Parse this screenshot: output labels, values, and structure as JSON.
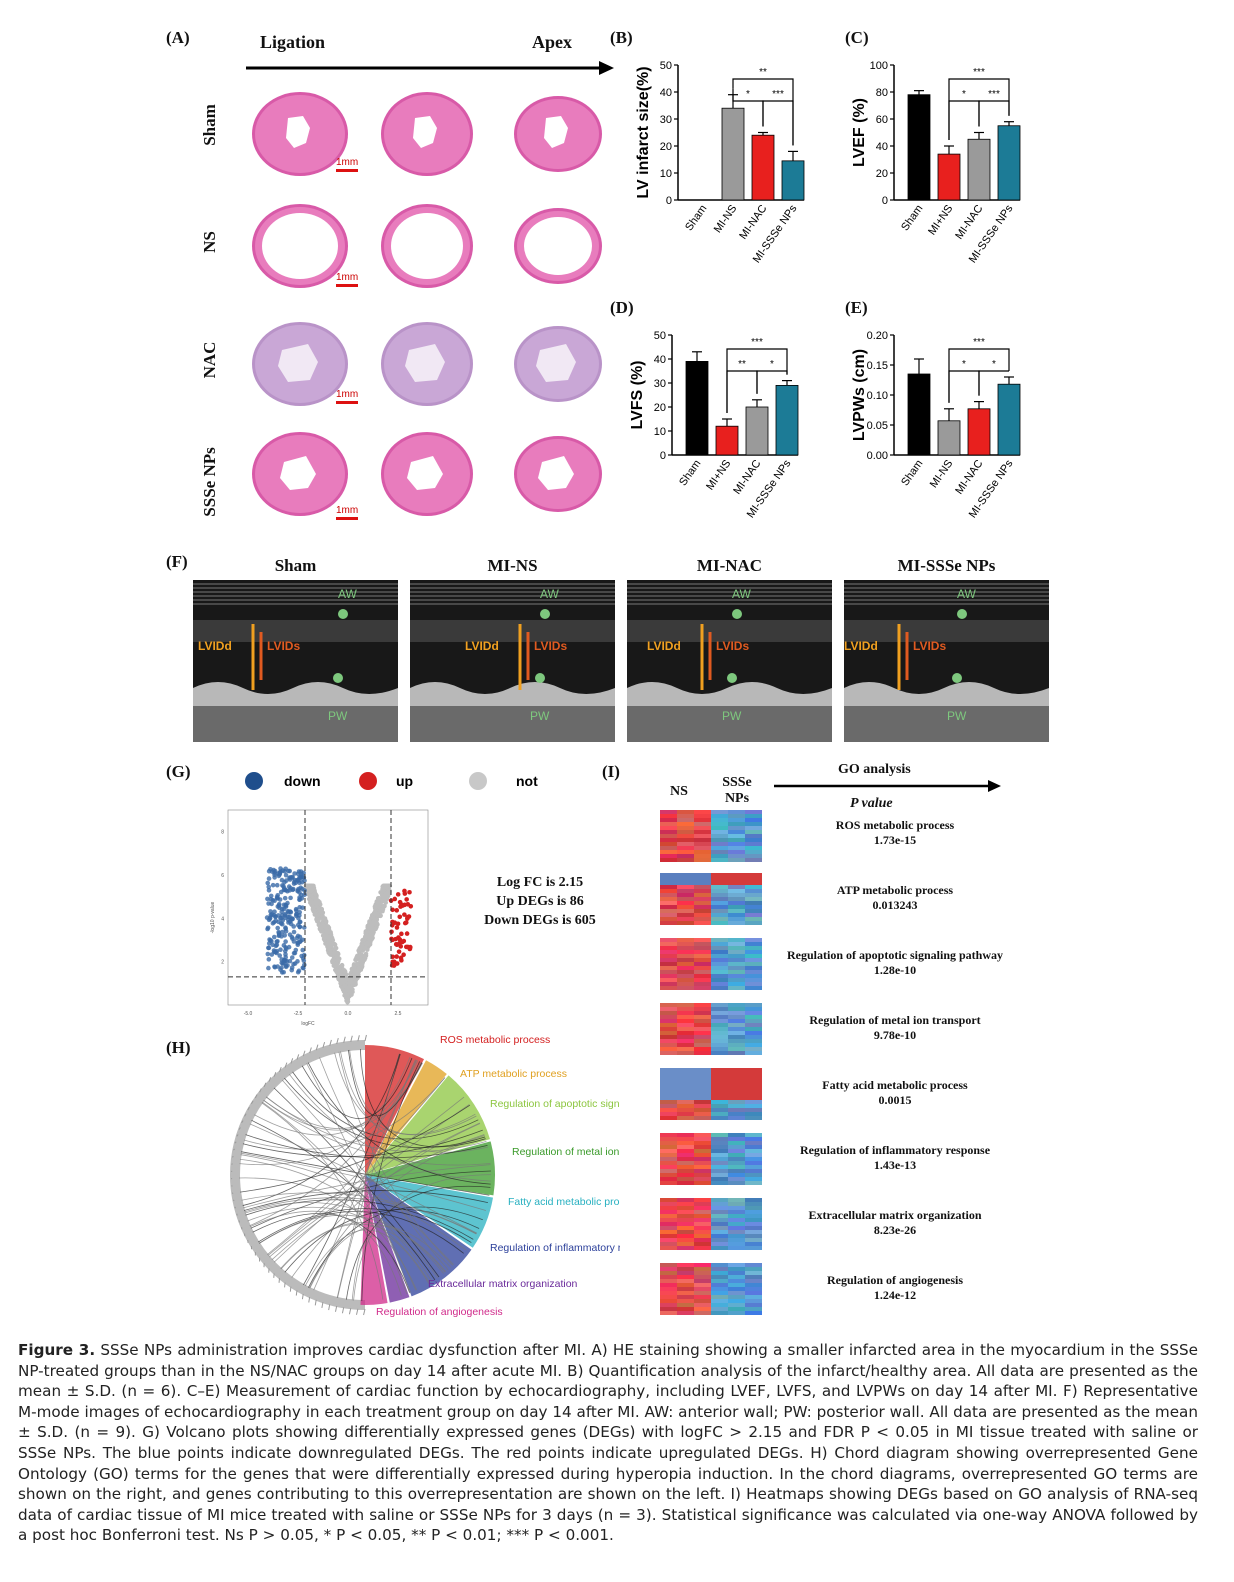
{
  "panel_A": {
    "label": "(A)",
    "ligation": "Ligation",
    "apex": "Apex",
    "rows": [
      "Sham",
      "NS",
      "NAC",
      "SSSe NPs"
    ],
    "scale_bar": "1mm"
  },
  "panel_B": {
    "label": "(B)"
  },
  "panel_C": {
    "label": "(C)"
  },
  "panel_D": {
    "label": "(D)"
  },
  "panel_E": {
    "label": "(E)"
  },
  "chart_data": [
    {
      "type": "bar",
      "panel": "B",
      "ylabel": "LV infarct size(%)",
      "categories": [
        "Sham",
        "MI-NS",
        "MI-NAC",
        "MI-SSSe NPs"
      ],
      "values": [
        0,
        34,
        24,
        14.5
      ],
      "errors": [
        0,
        5,
        1,
        3.5
      ],
      "colors": [
        "#000000",
        "#9a9a9a",
        "#e8201e",
        "#1c7b96"
      ],
      "ylim": [
        0,
        50
      ],
      "yticks": [
        "0",
        "10",
        "20",
        "30",
        "40",
        "50"
      ],
      "significance": [
        {
          "pair": [
            1,
            2
          ],
          "label": "*"
        },
        {
          "pair": [
            2,
            3
          ],
          "label": "***"
        },
        {
          "pair": [
            1,
            3
          ],
          "label": "**"
        }
      ]
    },
    {
      "type": "bar",
      "panel": "C",
      "ylabel": "LVEF (%)",
      "categories": [
        "Sham",
        "MI+NS",
        "MI-NAC",
        "MI-SSSe NPs"
      ],
      "values": [
        78,
        34,
        45,
        55
      ],
      "errors": [
        3,
        6,
        5,
        3
      ],
      "colors": [
        "#000000",
        "#e8201e",
        "#9a9a9a",
        "#1c7b96"
      ],
      "ylim": [
        0,
        100
      ],
      "yticks": [
        "0",
        "20",
        "40",
        "60",
        "80",
        "100"
      ],
      "significance": [
        {
          "pair": [
            1,
            2
          ],
          "label": "*"
        },
        {
          "pair": [
            2,
            3
          ],
          "label": "***"
        },
        {
          "pair": [
            1,
            3
          ],
          "label": "***"
        }
      ]
    },
    {
      "type": "bar",
      "panel": "D",
      "ylabel": "LVFS (%)",
      "categories": [
        "Sham",
        "MI+NS",
        "MI-NAC",
        "MI-SSSe NPs"
      ],
      "values": [
        39,
        12,
        20,
        29
      ],
      "errors": [
        4,
        3,
        3,
        2
      ],
      "colors": [
        "#000000",
        "#e8201e",
        "#9a9a9a",
        "#1c7b96"
      ],
      "ylim": [
        0,
        50
      ],
      "yticks": [
        "0",
        "10",
        "20",
        "30",
        "40",
        "50"
      ],
      "significance": [
        {
          "pair": [
            1,
            2
          ],
          "label": "**"
        },
        {
          "pair": [
            2,
            3
          ],
          "label": "*"
        },
        {
          "pair": [
            1,
            3
          ],
          "label": "***"
        }
      ]
    },
    {
      "type": "bar",
      "panel": "E",
      "ylabel": "LVPWs (cm)",
      "categories": [
        "Sham",
        "MI-NS",
        "MI-NAC",
        "MI-SSSe NPs"
      ],
      "values": [
        0.135,
        0.057,
        0.077,
        0.118
      ],
      "errors": [
        0.025,
        0.02,
        0.012,
        0.012
      ],
      "colors": [
        "#000000",
        "#9a9a9a",
        "#e8201e",
        "#1c7b96"
      ],
      "ylim": [
        0,
        0.2
      ],
      "yticks": [
        "0.00",
        "0.05",
        "0.10",
        "0.15",
        "0.20"
      ],
      "significance": [
        {
          "pair": [
            1,
            2
          ],
          "label": "*"
        },
        {
          "pair": [
            2,
            3
          ],
          "label": "*"
        },
        {
          "pair": [
            1,
            3
          ],
          "label": "***"
        }
      ]
    },
    {
      "type": "scatter",
      "panel": "G",
      "xlabel": "logFC",
      "ylabel": "-log10 p-value",
      "xticks": [
        "-5.0",
        "-2.5",
        "0.0",
        "2.5"
      ],
      "yticks": [
        "2",
        "4",
        "6",
        "8"
      ],
      "legend": [
        "down",
        "up",
        "not"
      ],
      "legend_colors": [
        "#1f4e8c",
        "#d42020",
        "#bfbfbf"
      ],
      "annotation": [
        "Log FC is 2.15",
        "Up DEGs is 86",
        "Down DEGs is 605"
      ]
    }
  ],
  "panel_F": {
    "label": "(F)",
    "groups": [
      "Sham",
      "MI-NS",
      "MI-NAC",
      "MI-SSSe NPs"
    ],
    "aw": "AW",
    "pw": "PW",
    "lvidd": "LVIDd",
    "lvids": "LVIDs"
  },
  "panel_G": {
    "label": "(G)"
  },
  "panel_H": {
    "label": "(H)",
    "terms": [
      "ROS metabolic process",
      "ATP metabolic process",
      "Regulation of apoptotic signaling pathway",
      "Regulation of metal ion transport",
      "Fatty acid metabolic process",
      "Regulation of inflammatory response",
      "Extracellular matrix organization",
      "Regulation of angiogenesis"
    ],
    "term_colors": [
      "#d42020",
      "#e0a020",
      "#8cc63f",
      "#3a9a2a",
      "#27b0c0",
      "#2b3f9a",
      "#6a2a9a",
      "#d02a8a"
    ]
  },
  "panel_I": {
    "label": "(I)",
    "col_ns": "NS",
    "col_ssse": "SSSe NPs",
    "go_analysis": "GO analysis",
    "p_value": "P value",
    "terms": [
      {
        "name": "ROS metabolic process",
        "p": "1.73e-15"
      },
      {
        "name": "ATP metabolic process",
        "p": "0.013243"
      },
      {
        "name": "Regulation of apoptotic signaling pathway",
        "p": "1.28e-10"
      },
      {
        "name": "Regulation of metal ion transport",
        "p": "9.78e-10"
      },
      {
        "name": "Fatty acid metabolic process",
        "p": "0.0015"
      },
      {
        "name": "Regulation of inflammatory response",
        "p": "1.43e-13"
      },
      {
        "name": "Extracellular matrix organization",
        "p": "8.23e-26"
      },
      {
        "name": "Regulation of angiogenesis",
        "p": "1.24e-12"
      }
    ]
  },
  "caption": {
    "lead": "Figure 3.",
    "text": "SSSe NPs administration improves cardiac dysfunction after MI. A) HE staining showing a smaller infarcted area in the myocardium in the SSSe NP-treated groups than in the NS/NAC groups on day 14 after acute MI. B) Quantification analysis of the infarct/healthy area. All data are presented as the mean ± S.D. (n = 6). C–E) Measurement of cardiac function by echocardiography, including LVEF, LVFS, and LVPWs on day 14 after MI. F) Representative M-mode images of echocardiography in each treatment group on day 14 after MI. AW: anterior wall; PW: posterior wall. All data are presented as the mean ± S.D. (n = 9). G) Volcano plots showing differentially expressed genes (DEGs) with logFC > 2.15 and FDR P < 0.05 in MI tissue treated with saline or SSSe NPs. The blue points indicate downregulated DEGs. The red points indicate upregulated DEGs. H) Chord diagram showing overrepresented Gene Ontology (GO) terms for the genes that were differentially expressed during hyperopia induction. In the chord diagrams, overrepresented GO terms are shown on the right, and genes contributing to this overrepresentation are shown on the left. I) Heatmaps showing DEGs based on GO analysis of RNA-seq data of cardiac tissue of MI mice treated with saline or SSSe NPs for 3 days (n = 3). Statistical significance was calculated via one-way ANOVA followed by a post hoc Bonferroni test. Ns P > 0.05, * P < 0.05, ** P < 0.01; *** P < 0.001."
  }
}
